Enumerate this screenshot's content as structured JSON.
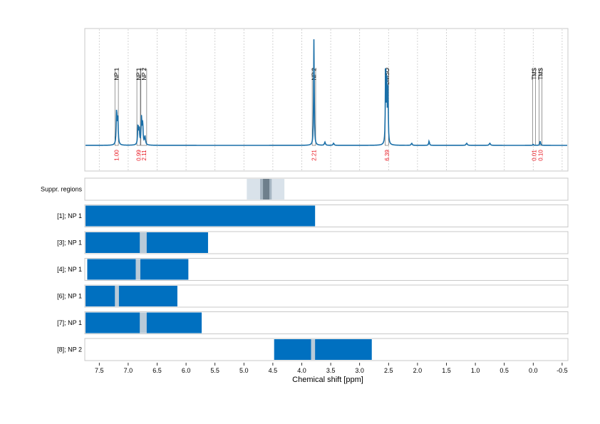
{
  "chart_data": {
    "type": "nmr-spectrum",
    "xlabel": "Chemical shift [ppm]",
    "xlim": [
      7.75,
      -0.6
    ],
    "x_ticks": [
      7.5,
      7.0,
      6.5,
      6.0,
      5.5,
      5.0,
      4.5,
      4.0,
      3.5,
      3.0,
      2.5,
      2.0,
      1.5,
      1.0,
      0.5,
      0.0,
      -0.5
    ],
    "x_tick_labels": [
      "7.5",
      "7.0",
      "6.5",
      "6.0",
      "5.5",
      "5.0",
      "4.5",
      "4.0",
      "3.5",
      "3.0",
      "2.5",
      "2.0",
      "1.5",
      "1.0",
      "0.5",
      "0.0",
      "-0.5"
    ],
    "grid": "vertical-dashed",
    "line_color": "#1a6fa8",
    "bar_color": "#0070c0",
    "gap_color": "#b9cad8",
    "spectrum_peaks": [
      {
        "ppm": 7.2,
        "height": 0.32,
        "width": 0.008
      },
      {
        "ppm": 7.18,
        "height": 0.26,
        "width": 0.008
      },
      {
        "ppm": 6.83,
        "height": 0.18,
        "width": 0.008
      },
      {
        "ppm": 6.81,
        "height": 0.15,
        "width": 0.008
      },
      {
        "ppm": 6.77,
        "height": 0.25,
        "width": 0.008
      },
      {
        "ppm": 6.75,
        "height": 0.2,
        "width": 0.008
      },
      {
        "ppm": 6.71,
        "height": 0.08,
        "width": 0.01
      },
      {
        "ppm": 3.79,
        "height": 1.0,
        "width": 0.006
      },
      {
        "ppm": 3.6,
        "height": 0.03,
        "width": 0.01
      },
      {
        "ppm": 3.45,
        "height": 0.02,
        "width": 0.01
      },
      {
        "ppm": 2.55,
        "height": 0.82,
        "width": 0.006
      },
      {
        "ppm": 2.53,
        "height": 0.6,
        "width": 0.006
      },
      {
        "ppm": 2.51,
        "height": 0.5,
        "width": 0.006
      },
      {
        "ppm": 2.1,
        "height": 0.02,
        "width": 0.01
      },
      {
        "ppm": 1.8,
        "height": 0.04,
        "width": 0.008
      },
      {
        "ppm": 1.15,
        "height": 0.02,
        "width": 0.012
      },
      {
        "ppm": 0.75,
        "height": 0.02,
        "width": 0.012
      },
      {
        "ppm": 0.0,
        "height": 0.01,
        "width": 0.008
      },
      {
        "ppm": -0.12,
        "height": 0.04,
        "width": 0.008
      }
    ],
    "peak_annotations": [
      {
        "label": "NP 1",
        "ppm_low": 7.17,
        "ppm_high": 7.23,
        "integral": "1.00"
      },
      {
        "label": "NP 1",
        "ppm_low": 6.79,
        "ppm_high": 6.85,
        "integral": "0.99"
      },
      {
        "label": "NP 2",
        "ppm_low": 6.68,
        "ppm_high": 6.78,
        "integral": "2.11"
      },
      {
        "label": "NP 2",
        "ppm_low": 3.76,
        "ppm_high": 3.82,
        "integral": "2.21"
      },
      {
        "label": "DMSO",
        "ppm_low": 2.5,
        "ppm_high": 2.56,
        "integral": "6.39"
      },
      {
        "label": "TMS",
        "ppm_low": 0.01,
        "ppm_high": -0.03,
        "integral": "0.01"
      },
      {
        "label": "TMS",
        "ppm_low": -0.1,
        "ppm_high": -0.14,
        "integral": "0.10"
      }
    ],
    "suppression_row": {
      "label": "Suppr. regions",
      "bands": [
        {
          "from": 4.95,
          "to": 4.3,
          "color": "#d9e2ea"
        },
        {
          "from": 4.72,
          "to": 4.52,
          "color": "#a6b5c2"
        },
        {
          "from": 4.67,
          "to": 4.56,
          "color": "#6e7f8c"
        }
      ]
    },
    "region_rows": [
      {
        "label": "[1]; NP 1",
        "from": 7.75,
        "to": 3.77,
        "gaps": []
      },
      {
        "label": "[3]; NP 1",
        "from": 7.75,
        "to": 5.62,
        "gaps": [
          {
            "from": 6.8,
            "to": 6.68
          }
        ]
      },
      {
        "label": "[4]; NP 1",
        "from": 7.72,
        "to": 5.96,
        "gaps": [
          {
            "from": 6.87,
            "to": 6.79
          }
        ]
      },
      {
        "label": "[6]; NP 1",
        "from": 7.75,
        "to": 6.15,
        "gaps": [
          {
            "from": 7.23,
            "to": 7.16
          }
        ]
      },
      {
        "label": "[7]; NP 1",
        "from": 7.75,
        "to": 5.73,
        "gaps": [
          {
            "from": 6.8,
            "to": 6.68
          }
        ]
      },
      {
        "label": "[8]; NP 2",
        "from": 4.49,
        "to": 2.79,
        "gaps": [
          {
            "from": 3.84,
            "to": 3.77
          }
        ]
      }
    ]
  }
}
